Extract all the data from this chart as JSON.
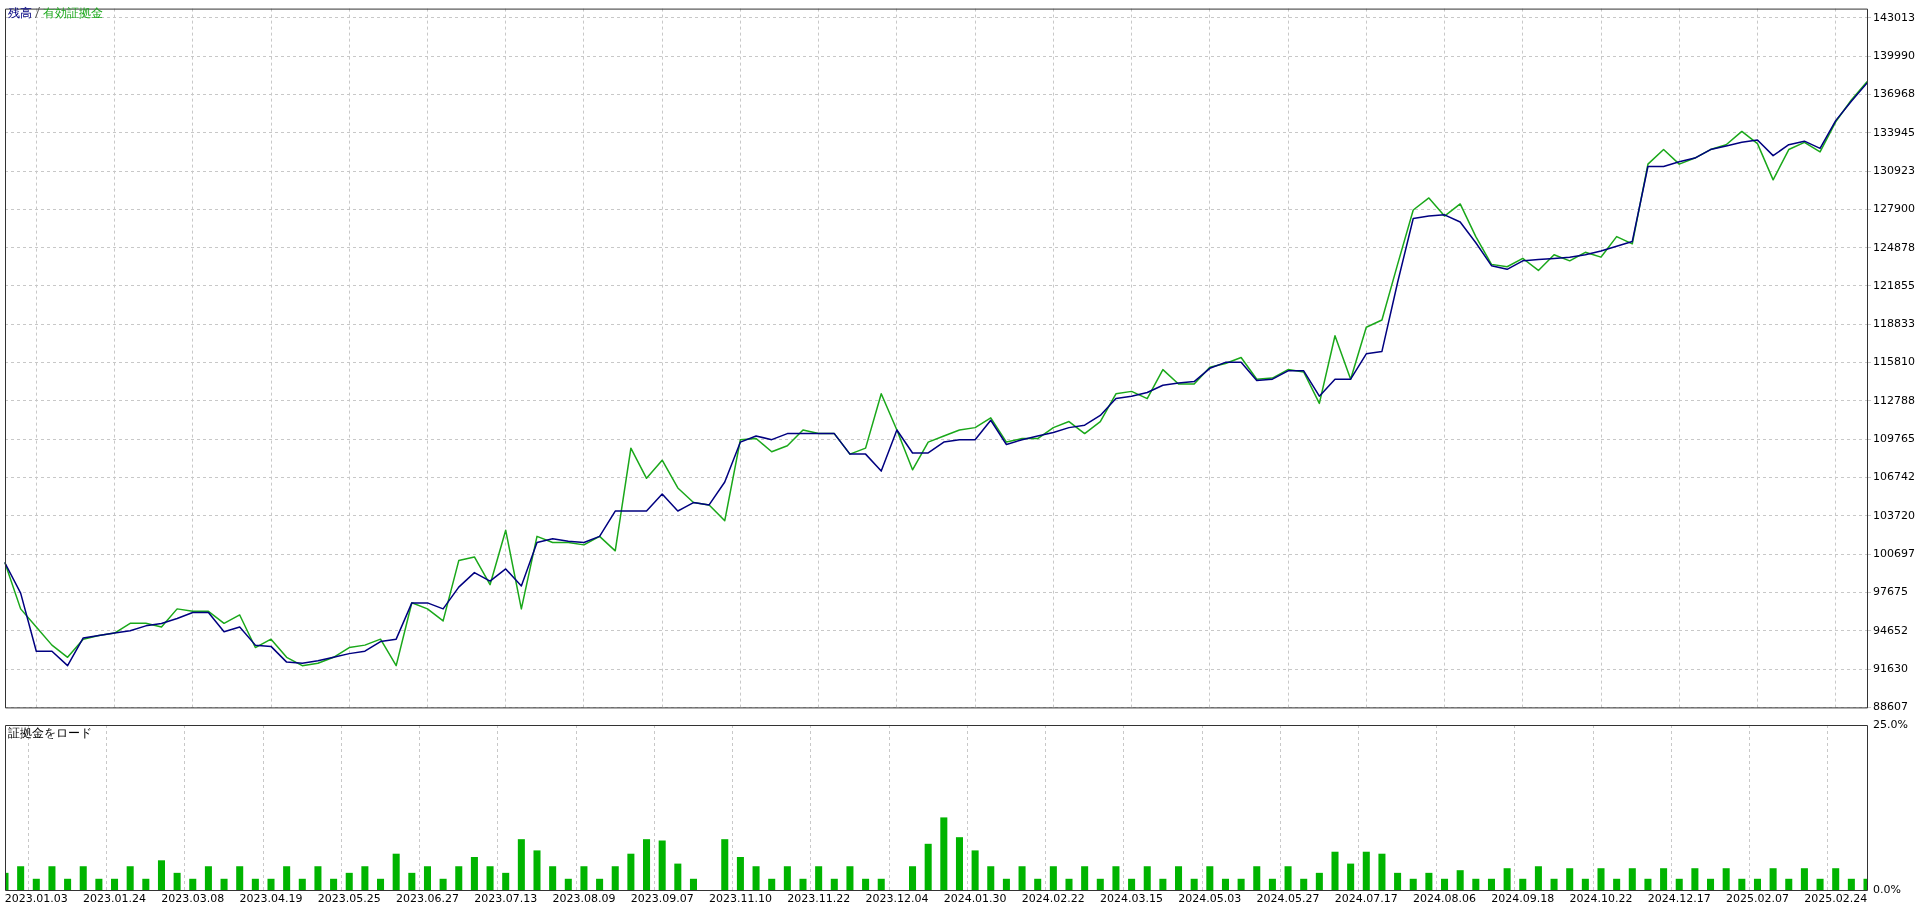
{
  "chart_data": [
    {
      "type": "line",
      "legend": "top left",
      "grid": true,
      "tick_labels": "y",
      "marker": "none",
      "categories": [
        null,
        null,
        "2023.01.03",
        null,
        null,
        null,
        null,
        "2023.01.24",
        null,
        null,
        null,
        null,
        "2023.03.08",
        null,
        null,
        null,
        null,
        "2023.04.19",
        null,
        null,
        null,
        null,
        "2023.05.25",
        null,
        null,
        null,
        null,
        "2023.06.27",
        null,
        null,
        null,
        null,
        "2023.07.13",
        null,
        null,
        null,
        null,
        "2023.08.09",
        null,
        null,
        null,
        null,
        "2023.09.07",
        null,
        null,
        null,
        null,
        "2023.11.10",
        null,
        null,
        null,
        null,
        "2023.11.22",
        null,
        null,
        null,
        null,
        "2023.12.04",
        null,
        null,
        null,
        null,
        "2024.01.30",
        null,
        null,
        null,
        null,
        "2024.02.22",
        null,
        null,
        null,
        null,
        "2024.03.15",
        null,
        null,
        null,
        null,
        "2024.05.03",
        null,
        null,
        null,
        null,
        "2024.05.27",
        null,
        null,
        null,
        null,
        "2024.07.17",
        null,
        null,
        null,
        null,
        "2024.08.06",
        null,
        null,
        null,
        null,
        "2024.09.18",
        null,
        null,
        null,
        null,
        "2024.10.22",
        null,
        null,
        null,
        null,
        "2024.12.17",
        null,
        null,
        null,
        null,
        "2025.02.07",
        null,
        null,
        null,
        null,
        "2025.02.24",
        null,
        null
      ],
      "ylim": [
        88607,
        143740
      ],
      "yticks": [
        88607,
        91630,
        94652,
        97675,
        100697,
        103720,
        106742,
        109765,
        112788,
        115810,
        118833,
        121855,
        124878,
        127900,
        130923,
        133945,
        136968,
        139990,
        143013
      ],
      "series": [
        {
          "name": "残高",
          "color": "#000080",
          "values": [
            100000,
            97620,
            93040,
            93040,
            91900,
            94090,
            94280,
            94470,
            94660,
            95040,
            95230,
            95620,
            96090,
            96090,
            94570,
            94950,
            93520,
            93420,
            92180,
            92090,
            92280,
            92570,
            92850,
            93040,
            93800,
            93990,
            96850,
            96850,
            96380,
            98100,
            99240,
            98570,
            99530,
            98190,
            101620,
            101910,
            101720,
            101620,
            102100,
            104100,
            104100,
            104100,
            105440,
            104100,
            104770,
            104580,
            106390,
            109540,
            110020,
            109730,
            110210,
            110210,
            110210,
            110210,
            108590,
            108590,
            107250,
            110490,
            108680,
            108680,
            109540,
            109730,
            109730,
            111260,
            109350,
            109730,
            110020,
            110300,
            110680,
            110870,
            111640,
            112970,
            113160,
            113450,
            114020,
            114210,
            114310,
            115360,
            115830,
            115830,
            114400,
            114500,
            115160,
            115160,
            113160,
            114500,
            114500,
            116500,
            116690,
            122130,
            127180,
            127370,
            127470,
            126900,
            125270,
            123460,
            123170,
            123840,
            123940,
            124030,
            124130,
            124320,
            124610,
            124990,
            125370,
            131280,
            131280,
            131660,
            131950,
            132620,
            132900,
            133190,
            133380,
            132140,
            133000,
            133280,
            132710,
            134900,
            136430,
            137860
          ]
        },
        {
          "name": "有効証拠金",
          "color": "#1aa81a",
          "values": [
            100000,
            96380,
            94950,
            93520,
            92560,
            93990,
            94280,
            94470,
            95240,
            95240,
            94950,
            96380,
            96190,
            96190,
            95240,
            95900,
            93330,
            93990,
            92560,
            91900,
            92090,
            92560,
            93330,
            93520,
            93990,
            91900,
            96860,
            96380,
            95430,
            100190,
            100480,
            98290,
            102580,
            96380,
            102100,
            101620,
            101620,
            101430,
            102100,
            100960,
            109060,
            106680,
            108110,
            105920,
            104770,
            104580,
            103340,
            109730,
            109820,
            108780,
            109250,
            110490,
            110210,
            110210,
            108590,
            109060,
            113350,
            110490,
            107350,
            109540,
            110020,
            110490,
            110680,
            111450,
            109540,
            109820,
            109820,
            110680,
            111160,
            110210,
            111160,
            113350,
            113540,
            112970,
            115260,
            114120,
            114120,
            115450,
            115740,
            116210,
            114500,
            114590,
            115260,
            115070,
            112590,
            117930,
            114500,
            118600,
            119170,
            123560,
            127850,
            128800,
            127370,
            128330,
            125750,
            123560,
            123370,
            124030,
            123080,
            124320,
            123840,
            124510,
            124130,
            125750,
            125180,
            131470,
            132620,
            131470,
            131950,
            132620,
            133000,
            134050,
            133090,
            130230,
            132620,
            133190,
            132430,
            134810,
            136530,
            137960
          ]
        }
      ]
    },
    {
      "type": "bar",
      "title": "証拠金をロード",
      "grid": "x",
      "color": "#00b400",
      "categories": [
        null,
        null,
        "2023.01.03",
        null,
        null,
        null,
        null,
        "2023.01.24",
        null,
        null,
        null,
        null,
        "2023.03.08",
        null,
        null,
        null,
        null,
        "2023.04.19",
        null,
        null,
        null,
        null,
        "2023.05.25",
        null,
        null,
        null,
        null,
        "2023.06.27",
        null,
        null,
        null,
        null,
        "2023.07.13",
        null,
        null,
        null,
        null,
        "2023.08.09",
        null,
        null,
        null,
        null,
        "2023.09.07",
        null,
        null,
        null,
        null,
        "2023.11.10",
        null,
        null,
        null,
        null,
        "2023.11.22",
        null,
        null,
        null,
        null,
        "2023.12.04",
        null,
        null,
        null,
        null,
        "2024.01.30",
        null,
        null,
        null,
        null,
        "2024.02.22",
        null,
        null,
        null,
        null,
        "2024.03.15",
        null,
        null,
        null,
        null,
        "2024.05.03",
        null,
        null,
        null,
        null,
        "2024.05.27",
        null,
        null,
        null,
        null,
        "2024.07.17",
        null,
        null,
        null,
        null,
        "2024.08.06",
        null,
        null,
        null,
        null,
        "2024.09.18",
        null,
        null,
        null,
        null,
        "2024.10.22",
        null,
        null,
        null,
        null,
        "2024.12.17",
        null,
        null,
        null,
        null,
        "2025.02.07",
        null,
        null,
        null,
        null,
        "2025.02.24",
        null,
        null
      ],
      "ylim": [
        0,
        25
      ],
      "yticks": [
        {
          "value": 0,
          "label": "0.0%"
        },
        {
          "value": 25,
          "label": "25.0%"
        }
      ],
      "values": [
        2.6,
        3.6,
        1.7,
        3.6,
        1.7,
        3.6,
        1.7,
        1.7,
        3.6,
        1.7,
        4.5,
        2.6,
        1.7,
        3.6,
        1.7,
        3.6,
        1.7,
        1.7,
        3.6,
        1.7,
        3.6,
        1.7,
        2.6,
        3.6,
        1.7,
        5.5,
        2.6,
        3.6,
        1.7,
        3.6,
        5,
        3.6,
        2.6,
        7.7,
        6,
        3.6,
        1.7,
        3.6,
        1.7,
        3.6,
        5.5,
        7.7,
        7.5,
        4,
        1.7,
        0,
        7.7,
        5,
        3.6,
        1.7,
        3.6,
        1.7,
        3.6,
        1.7,
        3.6,
        1.7,
        1.7,
        0,
        3.6,
        7,
        11,
        8,
        6,
        3.6,
        1.7,
        3.6,
        1.7,
        3.6,
        1.7,
        3.6,
        1.7,
        3.6,
        1.7,
        3.6,
        1.7,
        3.6,
        1.7,
        3.6,
        1.7,
        1.7,
        3.6,
        1.7,
        3.6,
        1.7,
        2.6,
        5.8,
        4,
        5.8,
        5.5,
        2.6,
        1.7,
        2.6,
        1.7,
        3,
        1.7,
        1.7,
        3.3,
        1.7,
        3.6,
        1.7,
        3.3,
        1.7,
        3.3,
        1.7,
        3.3,
        1.7,
        3.3,
        1.7,
        3.3,
        1.7,
        3.3,
        1.7,
        1.7,
        3.3,
        1.7,
        3.3,
        1.7,
        3.3,
        1.7,
        1.7
      ]
    }
  ]
}
